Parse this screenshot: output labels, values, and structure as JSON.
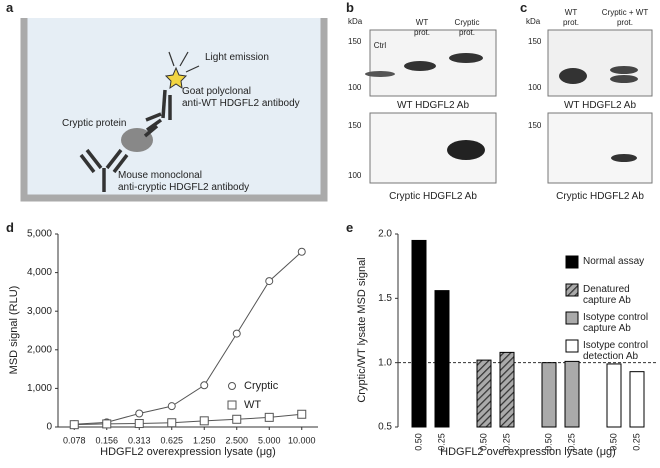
{
  "panel_labels": [
    "a",
    "b",
    "c",
    "d",
    "e"
  ],
  "diagram": {
    "labels": [
      "Light emission",
      "Goat polyclonal",
      "anti-WT HDGFL2 antibody",
      "Cryptic protein",
      "Mouse monoclonal",
      "anti-cryptic HDGFL2 antibody"
    ]
  },
  "blots": [
    {
      "unit": "kDa",
      "lanes": [
        "Ctrl",
        "WT prot.",
        "Cryptic prot."
      ],
      "panels": [
        {
          "ticks": [
            "150",
            "100"
          ],
          "caption": "WT HDGFL2 Ab"
        },
        {
          "ticks": [
            "150",
            "100"
          ],
          "caption": "Cryptic HDGFL2 Ab"
        }
      ]
    },
    {
      "unit": "kDa",
      "lanes": [
        "WT prot.",
        "Cryptic + WT prot."
      ],
      "panels": [
        {
          "ticks": [
            "150",
            "100"
          ],
          "caption": "WT HDGFL2 Ab"
        },
        {
          "ticks": [
            "150"
          ],
          "caption": "Cryptic HDGFL2 Ab"
        }
      ]
    }
  ],
  "chart_data": [
    {
      "type": "line",
      "x_label": "HDGFL2 overexpression lysate (μg)",
      "y_label": "MSD signal (RLU)",
      "categories": [
        "0.078",
        "0.156",
        "0.313",
        "0.625",
        "1.250",
        "2.500",
        "5.000",
        "10.000"
      ],
      "series": [
        {
          "name": "Cryptic",
          "color": "#555555",
          "marker": "circle",
          "values": [
            70,
            120,
            350,
            540,
            1080,
            2420,
            3780,
            4540
          ]
        },
        {
          "name": "WT",
          "color": "#555555",
          "marker": "square",
          "values": [
            60,
            80,
            90,
            110,
            160,
            200,
            250,
            330
          ]
        }
      ],
      "ylim": [
        0,
        5000
      ],
      "yticks": [
        0,
        {
          "value": 1000,
          "label": "1,000"
        },
        {
          "value": 2000,
          "label": "2,000"
        },
        {
          "value": 3000,
          "label": "3,000"
        },
        {
          "value": 4000,
          "label": "4,000"
        },
        {
          "value": 5000,
          "label": "5,000"
        }
      ]
    },
    {
      "type": "grouped_bar",
      "x_label": "HDGFL2 overexpression lysate (μg)",
      "y_label": "Cryptic/WT lysate MSD signal",
      "categories": [
        "0.50",
        "0.25"
      ],
      "series": [
        {
          "name": "Normal assay",
          "color": "#000000",
          "values": [
            1.95,
            1.56
          ]
        },
        {
          "name": "Denatured capture Ab",
          "color": "#555555",
          "pattern": "hatch",
          "values": [
            1.02,
            1.08
          ]
        },
        {
          "name": "Isotype control capture Ab",
          "color": "#aaaaaa",
          "values": [
            1.0,
            1.01
          ]
        },
        {
          "name": "Isotype control detection Ab",
          "color": "#ffffff",
          "values": [
            0.99,
            0.93
          ]
        }
      ],
      "reference_line": 1.0,
      "ylim": [
        0.5,
        2.0
      ],
      "yticks": [
        {
          "value": 0.5,
          "label": "0.5"
        },
        {
          "value": 1.0,
          "label": "1.0"
        },
        {
          "value": 1.5,
          "label": "1.5"
        },
        {
          "value": 2.0,
          "label": "2.0"
        }
      ]
    }
  ]
}
